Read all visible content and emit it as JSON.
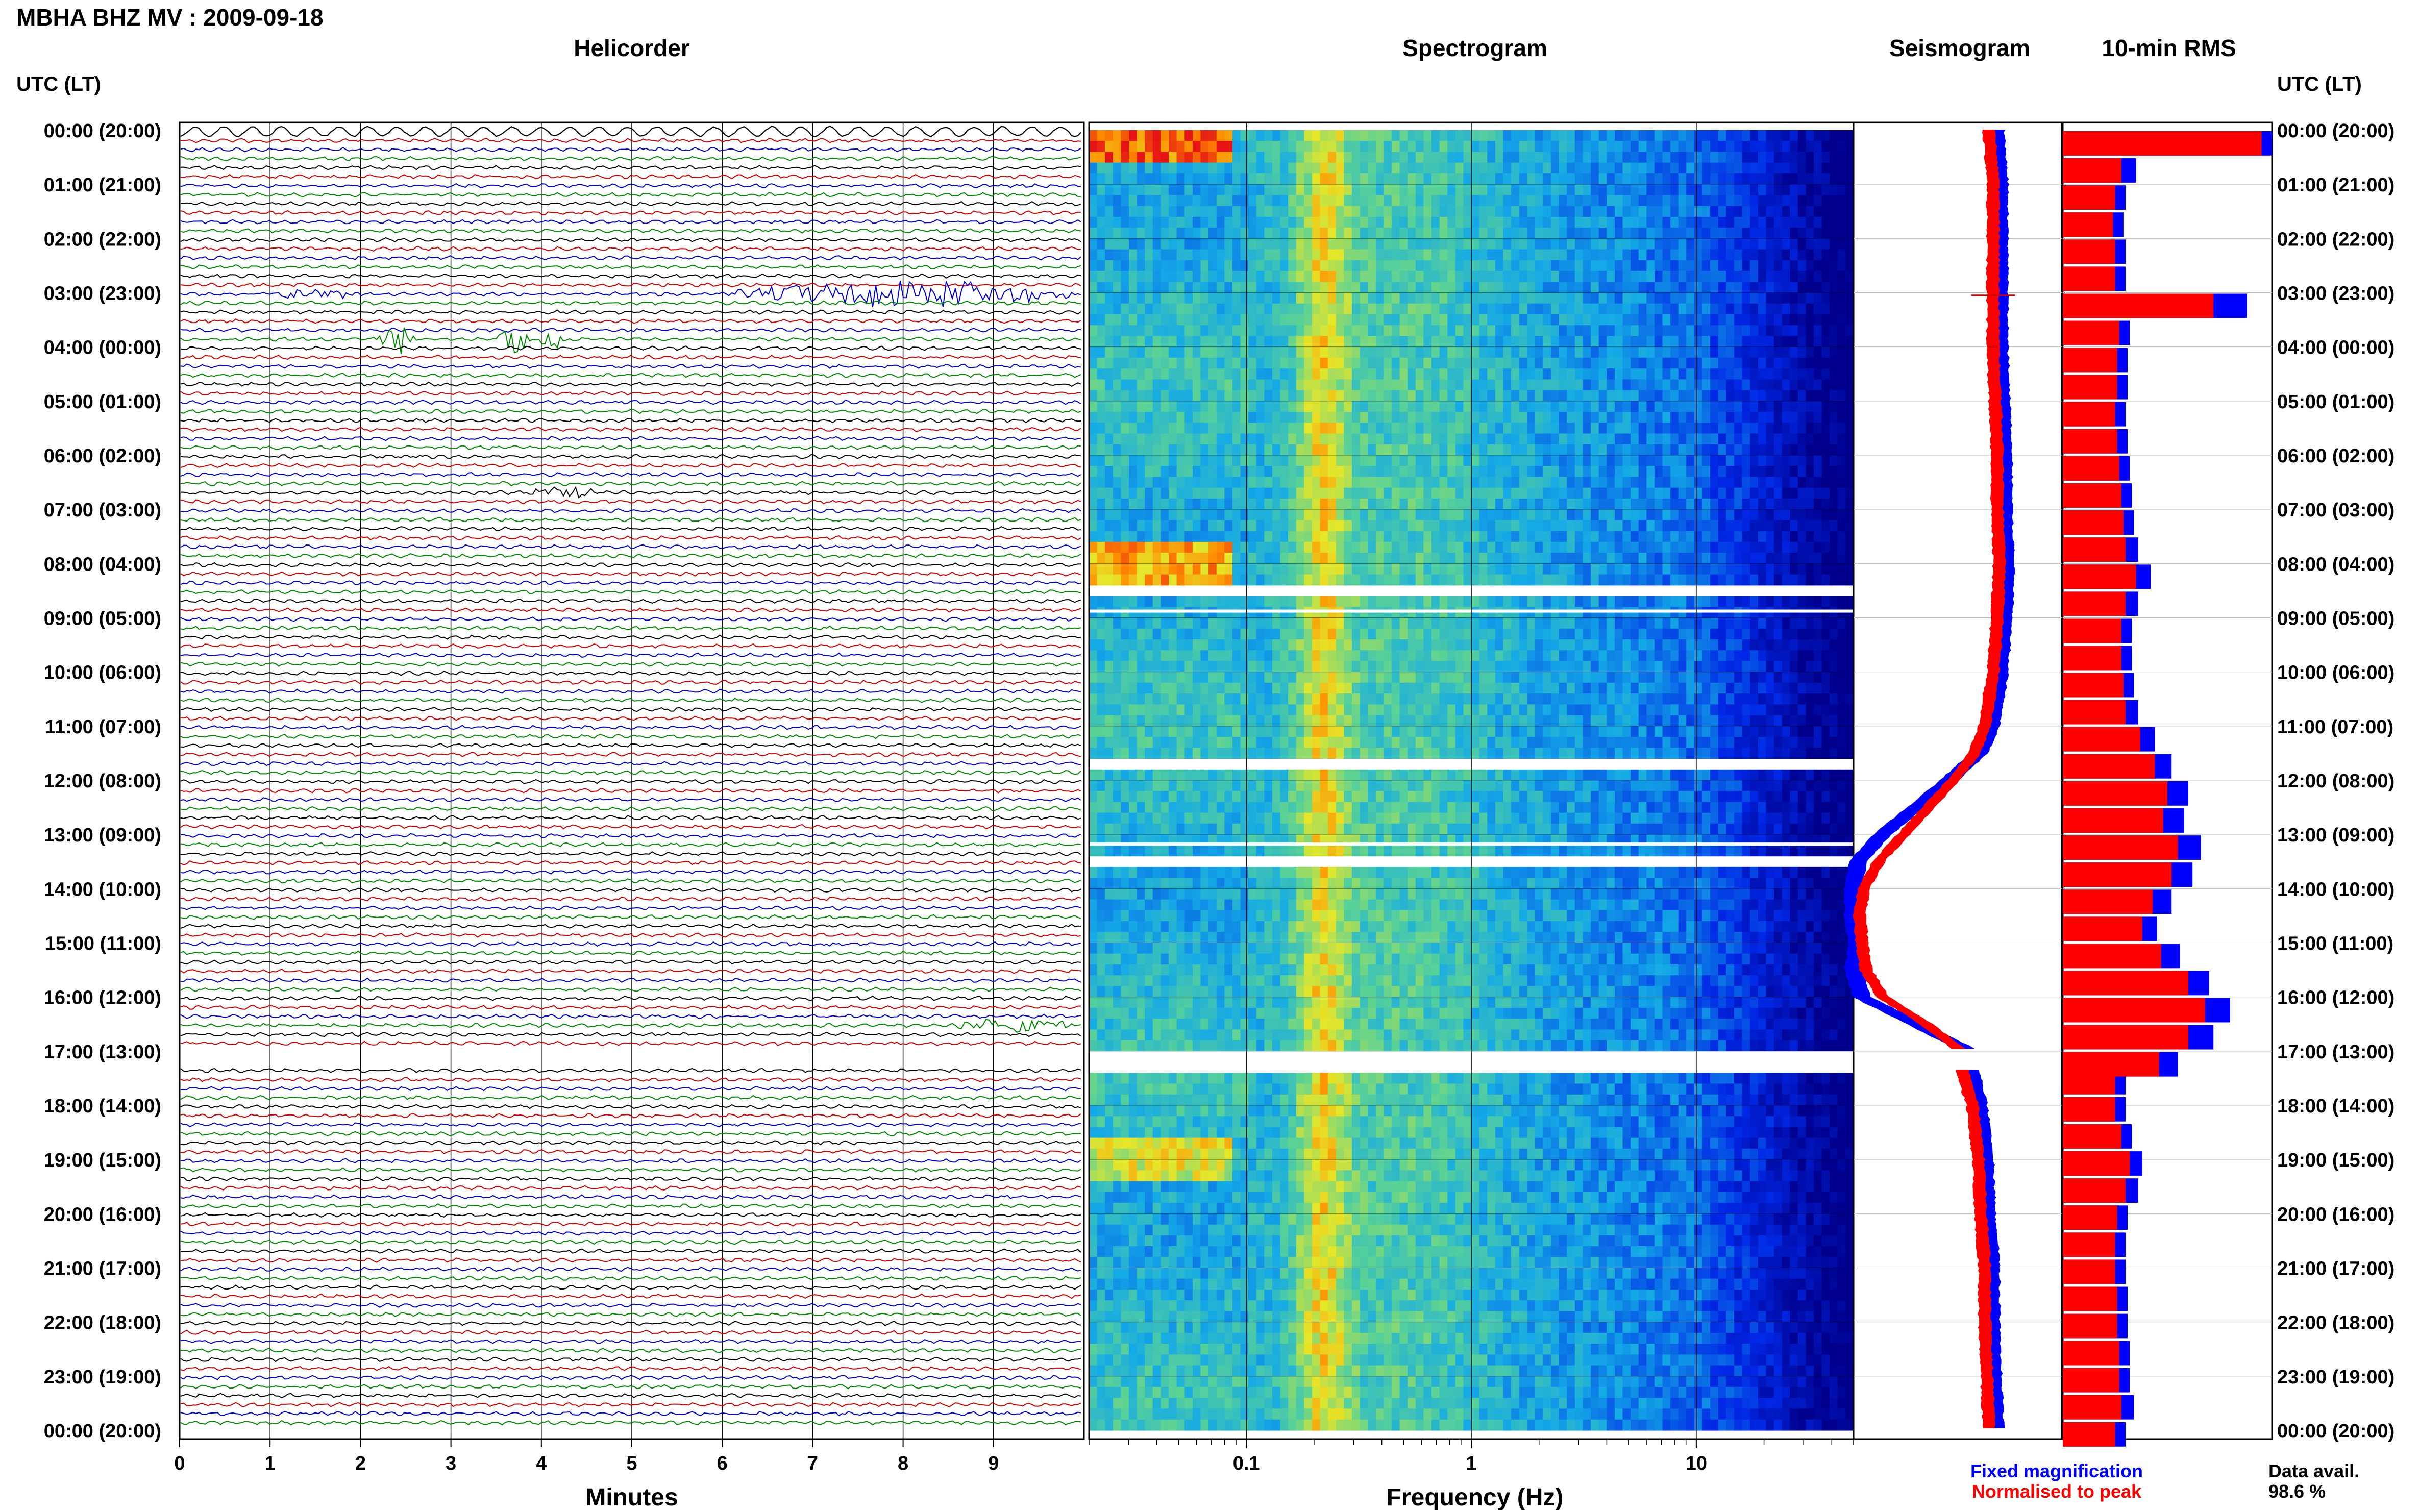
{
  "header": {
    "station_title": "MBHA BHZ MV : 2009-09-18",
    "time_axis_title": "UTC (LT)"
  },
  "panels": {
    "helicorder_title": "Helicorder",
    "spectrogram_title": "Spectrogram",
    "seismogram_title": "Seismogram",
    "rms_title": "10-min RMS"
  },
  "legend": {
    "fixed_label": "Fixed magnification",
    "normalised_label": "Normalised to peak",
    "data_avail_label": "Data avail.",
    "data_avail_value": "98.6 %"
  },
  "colors": {
    "helicorder_traces": [
      "#000000",
      "#d00000",
      "#0000cc",
      "#008800"
    ],
    "fixed_series": "#0000ff",
    "normalised_series": "#ff0000"
  },
  "chart_data": [
    {
      "type": "line",
      "name": "helicorder",
      "title": "Helicorder",
      "xlabel": "Minutes",
      "ylabel": "UTC (LT)",
      "xlim": [
        0,
        10
      ],
      "x_ticks": [
        "0",
        "1",
        "2",
        "3",
        "4",
        "5",
        "6",
        "7",
        "8",
        "9"
      ],
      "time_labels": [
        "00:00 (20:00)",
        "01:00 (21:00)",
        "02:00 (22:00)",
        "03:00 (23:00)",
        "04:00 (00:00)",
        "05:00 (01:00)",
        "06:00 (02:00)",
        "07:00 (03:00)",
        "08:00 (04:00)",
        "09:00 (05:00)",
        "10:00 (06:00)",
        "11:00 (07:00)",
        "12:00 (08:00)",
        "13:00 (09:00)",
        "14:00 (10:00)",
        "15:00 (11:00)",
        "16:00 (12:00)",
        "17:00 (13:00)",
        "18:00 (14:00)",
        "19:00 (15:00)",
        "20:00 (16:00)",
        "21:00 (17:00)",
        "22:00 (18:00)",
        "23:00 (19:00)",
        "00:00 (20:00)"
      ],
      "lines_per_hour": 6,
      "line_minutes": 10,
      "events": [
        {
          "hour": 3,
          "start_min": 1.0,
          "end_min": 2.0,
          "amp": 0.35
        },
        {
          "hour": 3,
          "start_min": 6.1,
          "end_min": 9.9,
          "amp": 0.9
        },
        {
          "hour": 3.85,
          "start_min": 2.2,
          "end_min": 2.6,
          "amp": 1.0
        },
        {
          "hour": 3.85,
          "start_min": 3.5,
          "end_min": 3.9,
          "amp": 1.0
        },
        {
          "hour": 3.85,
          "start_min": 3.95,
          "end_min": 4.3,
          "amp": 0.6
        },
        {
          "hour": 6.65,
          "start_min": 3.9,
          "end_min": 4.6,
          "amp": 0.4
        },
        {
          "hour": 16.5,
          "start_min": 8.6,
          "end_min": 9.9,
          "amp": 0.5
        }
      ],
      "gaps": [
        {
          "start_hour": 17.0,
          "end_hour": 17.33
        }
      ]
    },
    {
      "type": "heatmap",
      "name": "spectrogram",
      "title": "Spectrogram",
      "xlabel": "Frequency (Hz)",
      "x_scale": "log",
      "xlim": [
        0.02,
        50
      ],
      "x_ticks": [
        "0.1",
        "1",
        "10"
      ],
      "y_hours": [
        0,
        24
      ],
      "low_freq_high_power": [
        {
          "hour": 0.2,
          "level": 1.0
        },
        {
          "hour": 8.0,
          "level": 0.9
        },
        {
          "hour": 19.0,
          "level": 0.6
        }
      ],
      "gaps": [
        {
          "start_hour": 8.5,
          "end_hour": 8.55
        },
        {
          "start_hour": 8.85,
          "end_hour": 8.9
        },
        {
          "start_hour": 11.7,
          "end_hour": 11.75
        },
        {
          "start_hour": 13.15,
          "end_hour": 13.2
        },
        {
          "start_hour": 13.5,
          "end_hour": 13.55
        },
        {
          "start_hour": 17.0,
          "end_hour": 17.33
        }
      ]
    },
    {
      "type": "line",
      "name": "seismogram",
      "title": "Seismogram",
      "series": [
        {
          "name": "Fixed magnification",
          "color": "#0000ff",
          "hours": [
            0,
            1,
            2,
            3,
            4,
            5,
            6,
            7,
            8,
            9,
            10,
            11,
            11.5,
            12,
            12.5,
            13,
            13.5,
            14,
            14.5,
            15,
            15.5,
            16,
            16.5,
            17,
            17.33,
            18,
            19,
            20,
            21,
            22,
            23,
            24
          ],
          "values": [
            0.68,
            0.7,
            0.7,
            0.7,
            0.7,
            0.71,
            0.72,
            0.72,
            0.73,
            0.72,
            0.7,
            0.66,
            0.6,
            0.46,
            0.3,
            0.14,
            0.02,
            0.0,
            0.0,
            0.02,
            0.0,
            0.04,
            0.3,
            0.56,
            0.56,
            0.6,
            0.63,
            0.64,
            0.66,
            0.66,
            0.67,
            0.68
          ]
        },
        {
          "name": "Normalised to peak",
          "color": "#ff0000",
          "hours": [
            0,
            1,
            2,
            3,
            4,
            5,
            6,
            7,
            8,
            9,
            10,
            11,
            11.5,
            12,
            12.5,
            13,
            13.5,
            14,
            14.5,
            15,
            15.5,
            16,
            16.5,
            17,
            17.33,
            18,
            19,
            20,
            21,
            22,
            23,
            24
          ],
          "values": [
            0.65,
            0.67,
            0.67,
            0.67,
            0.67,
            0.68,
            0.69,
            0.69,
            0.7,
            0.69,
            0.67,
            0.63,
            0.58,
            0.48,
            0.36,
            0.24,
            0.12,
            0.05,
            0.03,
            0.04,
            0.06,
            0.14,
            0.35,
            0.52,
            0.52,
            0.57,
            0.6,
            0.61,
            0.63,
            0.63,
            0.64,
            0.65
          ]
        }
      ],
      "spikes": [
        {
          "hour": 3.05,
          "amp": 0.7
        },
        {
          "hour": 4.0,
          "amp": 0.15
        }
      ]
    },
    {
      "type": "bar",
      "name": "rms",
      "title": "10-min RMS",
      "orientation": "horizontal",
      "hours": [
        0,
        0.5,
        1,
        1.5,
        2,
        2.5,
        3,
        3.5,
        4,
        4.5,
        5,
        5.5,
        6,
        6.5,
        7,
        7.5,
        8,
        8.5,
        9,
        9.5,
        10,
        10.5,
        11,
        11.5,
        12,
        12.5,
        13,
        13.5,
        14,
        14.5,
        15,
        15.5,
        16,
        16.5,
        17,
        17.33,
        17.83,
        18.33,
        18.83,
        19.33,
        19.83,
        20.33,
        20.83,
        21.33,
        21.83,
        22.33,
        22.83,
        23.33,
        23.83
      ],
      "series": [
        {
          "name": "Fixed magnification",
          "color": "#0000ff",
          "values": [
            1.0,
            0.35,
            0.3,
            0.29,
            0.3,
            0.3,
            0.88,
            0.32,
            0.31,
            0.31,
            0.3,
            0.31,
            0.32,
            0.33,
            0.34,
            0.36,
            0.42,
            0.36,
            0.33,
            0.33,
            0.34,
            0.36,
            0.44,
            0.52,
            0.6,
            0.58,
            0.66,
            0.62,
            0.52,
            0.45,
            0.56,
            0.7,
            0.8,
            0.72,
            0.55,
            0.3,
            0.3,
            0.33,
            0.38,
            0.36,
            0.31,
            0.3,
            0.3,
            0.31,
            0.31,
            0.32,
            0.32,
            0.34,
            0.3
          ]
        },
        {
          "name": "Normalised to peak",
          "color": "#ff0000",
          "values": [
            0.95,
            0.28,
            0.25,
            0.24,
            0.25,
            0.25,
            0.72,
            0.27,
            0.26,
            0.26,
            0.25,
            0.26,
            0.27,
            0.28,
            0.29,
            0.3,
            0.35,
            0.3,
            0.28,
            0.28,
            0.29,
            0.3,
            0.37,
            0.44,
            0.5,
            0.48,
            0.55,
            0.52,
            0.43,
            0.38,
            0.47,
            0.6,
            0.68,
            0.6,
            0.46,
            0.25,
            0.25,
            0.28,
            0.32,
            0.3,
            0.26,
            0.25,
            0.25,
            0.26,
            0.26,
            0.27,
            0.27,
            0.28,
            0.25
          ]
        }
      ]
    }
  ]
}
